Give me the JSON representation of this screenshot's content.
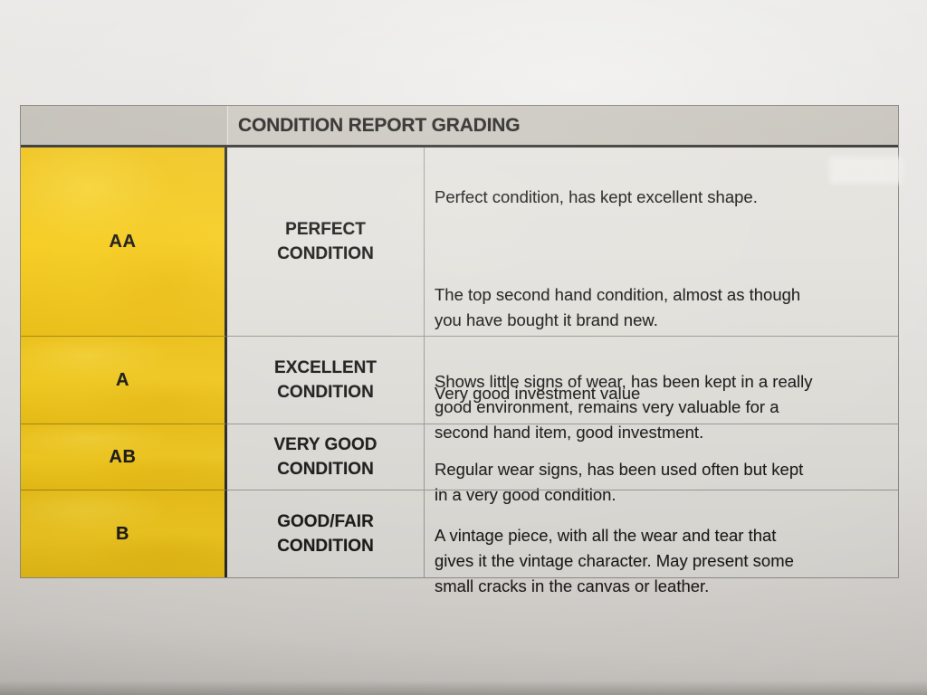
{
  "table": {
    "title": "CONDITION REPORT GRADING",
    "colors": {
      "grade_column_yellow": "#f3c91c",
      "header_gray": "#c6c2ba",
      "cell_background": "#e4e2dd",
      "ink": "#1d1c1a"
    },
    "rows": [
      {
        "grade": "AA",
        "condition": "PERFECT\nCONDITION",
        "description": [
          "Perfect condition, has kept excellent shape.",
          "The top second hand condition, almost as though\nyou have bought it brand new.",
          "Very good investment value"
        ]
      },
      {
        "grade": "A",
        "condition": "EXCELLENT\nCONDITION",
        "description": [
          "Shows little signs of wear, has been kept in a really\ngood environment, remains very valuable for a\nsecond hand item, good investment."
        ]
      },
      {
        "grade": "AB",
        "condition": "VERY GOOD\nCONDITION",
        "description": [
          "Regular wear signs, has been used often but kept\nin a very good condition."
        ]
      },
      {
        "grade": "B",
        "condition": "GOOD/FAIR\nCONDITION",
        "description": [
          "A vintage piece, with all the wear and tear that\ngives it the vintage character. May present some\nsmall cracks in the canvas or leather."
        ]
      }
    ]
  }
}
